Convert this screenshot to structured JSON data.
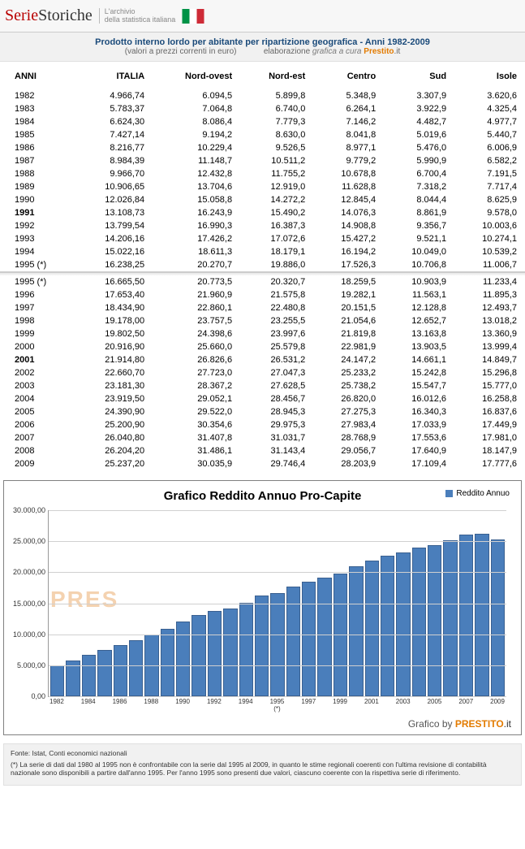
{
  "header": {
    "brand_part1": "Serie",
    "brand_part2": "Storiche",
    "tagline_line1": "L'archivio",
    "tagline_line2": "della statistica italiana",
    "flag_colors": [
      "#009246",
      "#ffffff",
      "#ce2b37"
    ]
  },
  "title": {
    "main": "Prodotto interno lordo per abitante per ripartizione geografica - Anni 1982-2009",
    "sub_left": "(valori a prezzi correnti in euro)",
    "sub_right_prefix": "elaborazione ",
    "sub_right_italic": "grafica a cura",
    "sub_right_brand_a": "Prestito",
    "sub_right_brand_b": ".it"
  },
  "table": {
    "columns": [
      "ANNI",
      "ITALIA",
      "Nord-ovest",
      "Nord-est",
      "Centro",
      "Sud",
      "Isole"
    ],
    "group_a": [
      {
        "year": "1982",
        "bold": false,
        "cells": [
          "4.966,74",
          "6.094,5",
          "5.899,8",
          "5.348,9",
          "3.307,9",
          "3.620,6"
        ]
      },
      {
        "year": "1983",
        "bold": false,
        "cells": [
          "5.783,37",
          "7.064,8",
          "6.740,0",
          "6.264,1",
          "3.922,9",
          "4.325,4"
        ]
      },
      {
        "year": "1984",
        "bold": false,
        "cells": [
          "6.624,30",
          "8.086,4",
          "7.779,3",
          "7.146,2",
          "4.482,7",
          "4.977,7"
        ]
      },
      {
        "year": "1985",
        "bold": false,
        "cells": [
          "7.427,14",
          "9.194,2",
          "8.630,0",
          "8.041,8",
          "5.019,6",
          "5.440,7"
        ]
      },
      {
        "year": "1986",
        "bold": false,
        "cells": [
          "8.216,77",
          "10.229,4",
          "9.526,5",
          "8.977,1",
          "5.476,0",
          "6.006,9"
        ]
      },
      {
        "year": "1987",
        "bold": false,
        "cells": [
          "8.984,39",
          "11.148,7",
          "10.511,2",
          "9.779,2",
          "5.990,9",
          "6.582,2"
        ]
      },
      {
        "year": "1988",
        "bold": false,
        "cells": [
          "9.966,70",
          "12.432,8",
          "11.755,2",
          "10.678,8",
          "6.700,4",
          "7.191,5"
        ]
      },
      {
        "year": "1989",
        "bold": false,
        "cells": [
          "10.906,65",
          "13.704,6",
          "12.919,0",
          "11.628,8",
          "7.318,2",
          "7.717,4"
        ]
      },
      {
        "year": "1990",
        "bold": false,
        "cells": [
          "12.026,84",
          "15.058,8",
          "14.272,2",
          "12.845,4",
          "8.044,4",
          "8.625,9"
        ]
      },
      {
        "year": "1991",
        "bold": true,
        "cells": [
          "13.108,73",
          "16.243,9",
          "15.490,2",
          "14.076,3",
          "8.861,9",
          "9.578,0"
        ]
      },
      {
        "year": "1992",
        "bold": false,
        "cells": [
          "13.799,54",
          "16.990,3",
          "16.387,3",
          "14.908,8",
          "9.356,7",
          "10.003,6"
        ]
      },
      {
        "year": "1993",
        "bold": false,
        "cells": [
          "14.206,16",
          "17.426,2",
          "17.072,6",
          "15.427,2",
          "9.521,1",
          "10.274,1"
        ]
      },
      {
        "year": "1994",
        "bold": false,
        "cells": [
          "15.022,16",
          "18.611,3",
          "18.179,1",
          "16.194,2",
          "10.049,0",
          "10.539,2"
        ]
      },
      {
        "year": "1995 (*)",
        "bold": false,
        "cells": [
          "16.238,25",
          "20.270,7",
          "19.886,0",
          "17.526,3",
          "10.706,8",
          "11.006,7"
        ]
      }
    ],
    "group_b": [
      {
        "year": "1995 (*)",
        "bold": false,
        "cells": [
          "16.665,50",
          "20.773,5",
          "20.320,7",
          "18.259,5",
          "10.903,9",
          "11.233,4"
        ]
      },
      {
        "year": "1996",
        "bold": false,
        "cells": [
          "17.653,40",
          "21.960,9",
          "21.575,8",
          "19.282,1",
          "11.563,1",
          "11.895,3"
        ]
      },
      {
        "year": "1997",
        "bold": false,
        "cells": [
          "18.434,90",
          "22.860,1",
          "22.480,8",
          "20.151,5",
          "12.128,8",
          "12.493,7"
        ]
      },
      {
        "year": "1998",
        "bold": false,
        "cells": [
          "19.178,00",
          "23.757,5",
          "23.255,5",
          "21.054,6",
          "12.652,7",
          "13.018,2"
        ]
      },
      {
        "year": "1999",
        "bold": false,
        "cells": [
          "19.802,50",
          "24.398,6",
          "23.997,6",
          "21.819,8",
          "13.163,8",
          "13.360,9"
        ]
      },
      {
        "year": "2000",
        "bold": false,
        "cells": [
          "20.916,90",
          "25.660,0",
          "25.579,8",
          "22.981,9",
          "13.903,5",
          "13.999,4"
        ]
      },
      {
        "year": "2001",
        "bold": true,
        "cells": [
          "21.914,80",
          "26.826,6",
          "26.531,2",
          "24.147,2",
          "14.661,1",
          "14.849,7"
        ]
      },
      {
        "year": "2002",
        "bold": false,
        "cells": [
          "22.660,70",
          "27.723,0",
          "27.047,3",
          "25.233,2",
          "15.242,8",
          "15.296,8"
        ]
      },
      {
        "year": "2003",
        "bold": false,
        "cells": [
          "23.181,30",
          "28.367,2",
          "27.628,5",
          "25.738,2",
          "15.547,7",
          "15.777,0"
        ]
      },
      {
        "year": "2004",
        "bold": false,
        "cells": [
          "23.919,50",
          "29.052,1",
          "28.456,7",
          "26.820,0",
          "16.012,6",
          "16.258,8"
        ]
      },
      {
        "year": "2005",
        "bold": false,
        "cells": [
          "24.390,90",
          "29.522,0",
          "28.945,3",
          "27.275,3",
          "16.340,3",
          "16.837,6"
        ]
      },
      {
        "year": "2006",
        "bold": false,
        "cells": [
          "25.200,90",
          "30.354,6",
          "29.975,3",
          "27.983,4",
          "17.033,9",
          "17.449,9"
        ]
      },
      {
        "year": "2007",
        "bold": false,
        "cells": [
          "26.040,80",
          "31.407,8",
          "31.031,7",
          "28.768,9",
          "17.553,6",
          "17.981,0"
        ]
      },
      {
        "year": "2008",
        "bold": false,
        "cells": [
          "26.204,20",
          "31.486,1",
          "31.143,4",
          "29.056,7",
          "17.640,9",
          "18.147,9"
        ]
      },
      {
        "year": "2009",
        "bold": false,
        "cells": [
          "25.237,20",
          "30.035,9",
          "29.746,4",
          "28.203,9",
          "17.109,4",
          "17.777,6"
        ]
      }
    ]
  },
  "chart": {
    "type": "bar",
    "title": "Grafico Reddito Annuo Pro-Capite",
    "legend_label": "Reddito Annuo",
    "series_color": "#4a7ebb",
    "series_border": "#3a6090",
    "background_color": "#ffffff",
    "grid_color": "#d0d0d0",
    "axis_color": "#999999",
    "title_fontsize": 15,
    "label_fontsize": 9,
    "ylim": [
      0,
      30000
    ],
    "ytick_step": 5000,
    "y_ticks": [
      "0,00",
      "5.000,00",
      "10.000,00",
      "15.000,00",
      "20.000,00",
      "25.000,00",
      "30.000,00"
    ],
    "x_labels": [
      "1982",
      "",
      "1984",
      "",
      "1986",
      "",
      "1988",
      "",
      "1990",
      "",
      "1992",
      "",
      "1994",
      "",
      "1995\n(*)",
      "",
      "1997",
      "",
      "1999",
      "",
      "2001",
      "",
      "2003",
      "",
      "2005",
      "",
      "2007",
      "",
      "2009"
    ],
    "values": [
      4966.74,
      5783.37,
      6624.3,
      7427.14,
      8216.77,
      8984.39,
      9966.7,
      10906.65,
      12026.84,
      13108.73,
      13799.54,
      14206.16,
      15022.16,
      16238.25,
      16665.5,
      17653.4,
      18434.9,
      19178.0,
      19802.5,
      20916.9,
      21914.8,
      22660.7,
      23181.3,
      23919.5,
      24390.9,
      25200.9,
      26040.8,
      26204.2,
      25237.2
    ],
    "watermark_left": "PRES",
    "watermark_right": ".it",
    "credit_prefix": "Grafico by ",
    "credit_brand_a": "PRESTITO",
    "credit_brand_b": ".it"
  },
  "footnotes": {
    "line1": "Fonte: Istat, Conti economici nazionali",
    "line2": "(*) La serie di dati dal 1980 al 1995 non è confrontabile con la serie dal 1995 al 2009, in quanto le stime regionali coerenti con l'ultima revisione di contabilità nazionale sono disponibili a partire dall'anno 1995. Per l'anno 1995 sono presenti due valori, ciascuno coerente con la rispettiva serie di riferimento."
  }
}
